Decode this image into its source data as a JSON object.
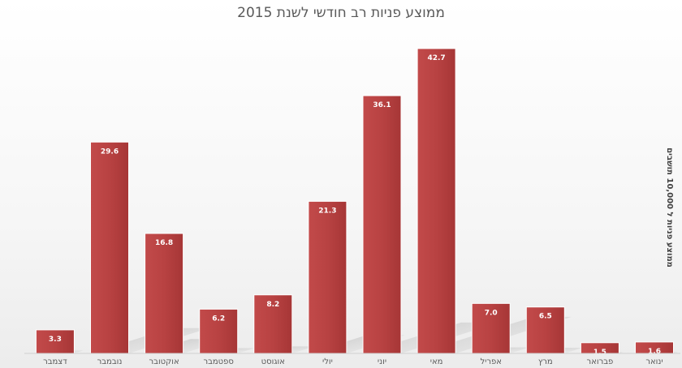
{
  "chart_data": {
    "type": "bar",
    "title": "ממוצע פניות רב חודשי לשנת 2015",
    "ylabel": "ממוצע פניות ל 10,000 תושבים",
    "xlabel": "",
    "categories": [
      "ינואר",
      "פברואר",
      "מרץ",
      "אפריל",
      "מאי",
      "יוני",
      "יולי",
      "אוגוסט",
      "ספטמבר",
      "אוקטובר",
      "נובמבר",
      "דצמבר"
    ],
    "values": [
      1.6,
      1.5,
      6.5,
      7.0,
      42.7,
      36.1,
      21.3,
      8.2,
      6.2,
      16.8,
      29.6,
      3.3
    ],
    "data_labels": [
      "1.6",
      "1.5",
      "6.5",
      "7.0",
      "42.7",
      "36.1",
      "21.3",
      "8.2",
      "6.2",
      "16.8",
      "29.6",
      "3.3"
    ],
    "x_direction": "right-to-left",
    "ylim": [
      0,
      47
    ],
    "grid": false,
    "legend": "none",
    "bar_color": "#b94141"
  }
}
